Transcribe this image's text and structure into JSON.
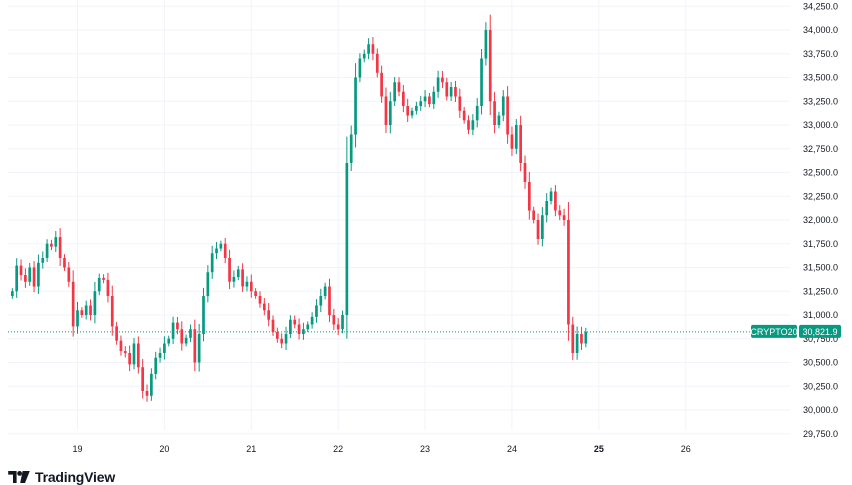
{
  "branding": {
    "name": "TradingView",
    "icon": "tradingview-logo-icon"
  },
  "colors": {
    "up": "#089981",
    "down": "#f23645",
    "grid": "#f0f3fa",
    "axis_text": "#131722",
    "price_line": "#089981",
    "tag_name_bg": "#089981",
    "tag_value_bg": "#089981"
  },
  "chart_data": {
    "type": "candlestick",
    "title": "",
    "xlabel": "",
    "ylabel": "",
    "symbol": "CRYPTO20",
    "last_price": 30821.9,
    "last_price_label": "30,821.9",
    "ylim": [
      29650,
      34250
    ],
    "y_ticks": [
      29750,
      30000,
      30250,
      30500,
      30750,
      31000,
      31250,
      31500,
      31750,
      32000,
      32250,
      32500,
      32750,
      33000,
      33250,
      33500,
      33750,
      34000,
      34250
    ],
    "y_tick_labels": [
      "29,750.0",
      "30,000.0",
      "30,250.0",
      "30,500.0",
      "30,750.0",
      "31,000.0",
      "31,250.0",
      "31,500.0",
      "31,750.0",
      "32,000.0",
      "32,250.0",
      "32,500.0",
      "32,750.0",
      "33,000.0",
      "33,250.0",
      "33,500.0",
      "33,750.0",
      "34,000.0",
      "34,250.0"
    ],
    "x_range": [
      18.2,
      27.2
    ],
    "x_ticks": [
      {
        "value": 19,
        "label": "19",
        "bold": false
      },
      {
        "value": 20,
        "label": "20",
        "bold": false
      },
      {
        "value": 21,
        "label": "21",
        "bold": false
      },
      {
        "value": 22,
        "label": "22",
        "bold": false
      },
      {
        "value": 23,
        "label": "23",
        "bold": false
      },
      {
        "value": 24,
        "label": "24",
        "bold": false
      },
      {
        "value": 25,
        "label": "25",
        "bold": true
      },
      {
        "value": 26,
        "label": "26",
        "bold": false
      }
    ],
    "candle_interval_days": 0.05,
    "candles_start": 18.25,
    "closes_start_open": 31200,
    "closes": [
      31250,
      31520,
      31420,
      31350,
      31500,
      31300,
      31550,
      31600,
      31750,
      31720,
      31820,
      31600,
      31500,
      31350,
      30880,
      31050,
      31000,
      31100,
      31000,
      31250,
      31390,
      31370,
      31200,
      30880,
      30730,
      30620,
      30600,
      30480,
      30700,
      30450,
      30200,
      30150,
      30380,
      30550,
      30600,
      30700,
      30750,
      30920,
      30850,
      30700,
      30760,
      30850,
      30500,
      30800,
      31200,
      31450,
      31650,
      31700,
      31750,
      31600,
      31350,
      31400,
      31480,
      31300,
      31350,
      31250,
      31200,
      31120,
      31050,
      30950,
      30820,
      30750,
      30700,
      30800,
      30950,
      30900,
      30800,
      30850,
      30900,
      30980,
      31100,
      31200,
      31300,
      31000,
      30900,
      30850,
      31000,
      32600,
      32900,
      33500,
      33700,
      33750,
      33850,
      33750,
      33550,
      33300,
      33000,
      33250,
      33450,
      33350,
      33200,
      33100,
      33150,
      33200,
      33250,
      33300,
      33220,
      33350,
      33500,
      33450,
      33300,
      33400,
      33300,
      33150,
      33050,
      32950,
      33050,
      33200,
      33700,
      34000,
      33250,
      33000,
      33100,
      33300,
      32900,
      32750,
      33000,
      32600,
      32400,
      32100,
      32000,
      31800,
      32050,
      32200,
      32300,
      32100,
      32050,
      32000,
      30900,
      30600,
      30800,
      30700,
      30821.9
    ]
  }
}
